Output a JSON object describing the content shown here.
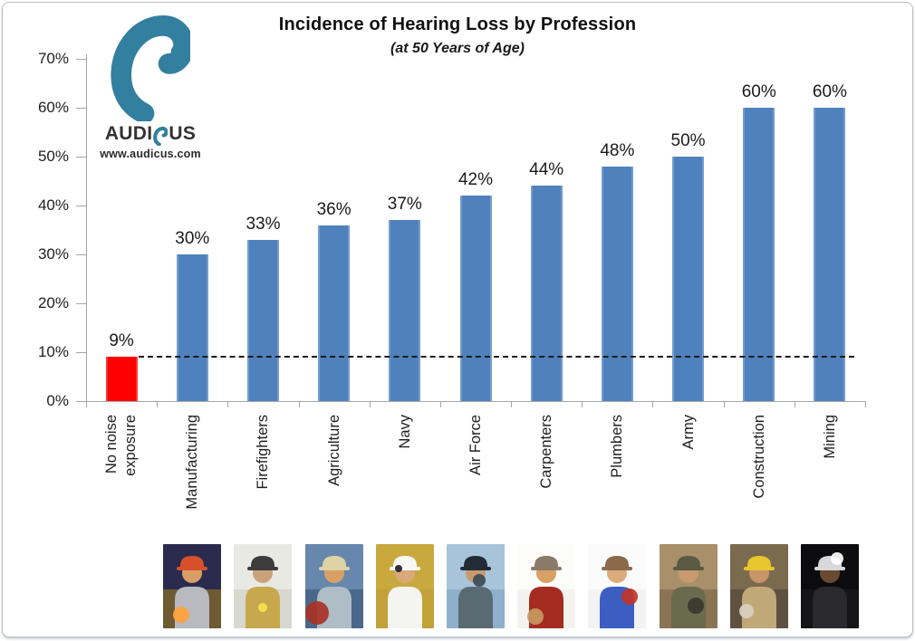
{
  "header": {
    "title": "Incidence of Hearing Loss by Profession",
    "subtitle": "(at 50 Years of Age)"
  },
  "logo": {
    "brand_prefix": "AUDI",
    "brand_suffix": "US",
    "website": "www.audicus.com",
    "teal": "#337F9F",
    "text_color": "#333333"
  },
  "chart_data": {
    "type": "bar",
    "title": "Incidence of Hearing Loss by Profession",
    "subtitle": "(at 50 Years of Age)",
    "categories": [
      "No noise exposure",
      "Manufacturing",
      "Firefighters",
      "Agriculture",
      "Navy",
      "Air Force",
      "Carpenters",
      "Plumbers",
      "Army",
      "Construction",
      "Mining"
    ],
    "display_categories": [
      "No noise\nexposure",
      "Manufacturing",
      "Firefighters",
      "Agriculture",
      "Navy",
      "Air Force",
      "Carpenters",
      "Plumbers",
      "Army",
      "Construction",
      "Mining"
    ],
    "values": [
      9,
      30,
      33,
      36,
      37,
      42,
      44,
      48,
      50,
      60,
      60
    ],
    "value_labels": [
      "9%",
      "30%",
      "33%",
      "36%",
      "37%",
      "42%",
      "44%",
      "48%",
      "50%",
      "60%",
      "60%"
    ],
    "bar_colors": [
      "#FF0000",
      "#4F81BD",
      "#4F81BD",
      "#4F81BD",
      "#4F81BD",
      "#4F81BD",
      "#4F81BD",
      "#4F81BD",
      "#4F81BD",
      "#4F81BD",
      "#4F81BD"
    ],
    "xlabel": "",
    "ylabel": "",
    "ylim": [
      0,
      70
    ],
    "yticks": [
      {
        "label": "0%",
        "value": 0
      },
      {
        "label": "10%",
        "value": 10
      },
      {
        "label": "20%",
        "value": 20
      },
      {
        "label": "30%",
        "value": 30
      },
      {
        "label": "40%",
        "value": 40
      },
      {
        "label": "50%",
        "value": 50
      },
      {
        "label": "60%",
        "value": 60
      },
      {
        "label": "70%",
        "value": 70
      }
    ],
    "grid": false,
    "legend": false,
    "reference_line": {
      "value": 9,
      "style": "dashed",
      "color": "#1C1C1C"
    }
  },
  "photos": [
    {
      "name": "welder-manufacturing",
      "label": "Manufacturing",
      "bg1": "#2b2b4e",
      "bg2": "#6e5a33",
      "skin": "#d9a066",
      "torso": "#b9b9c0",
      "hat": "#d8502a",
      "accent": "#ffa23c",
      "accent_x": 20,
      "accent_y": 78,
      "accent_r": 9
    },
    {
      "name": "firefighter",
      "label": "Firefighters",
      "bg1": "#e9e9e4",
      "bg2": "#d8d8d0",
      "skin": "#caa27a",
      "torso": "#c7a84e",
      "hat": "#3c3c3c",
      "accent": "#f5e34a",
      "accent_x": 32,
      "accent_y": 70,
      "accent_r": 5
    },
    {
      "name": "farmer-tractor",
      "label": "Agriculture",
      "bg1": "#6787ad",
      "bg2": "#49688c",
      "skin": "#d9a066",
      "torso": "#aebdc6",
      "hat": "#ddd3a4",
      "accent": "#a83226",
      "accent_x": 13,
      "accent_y": 76,
      "accent_r": 13
    },
    {
      "name": "navy-officer",
      "label": "Navy",
      "bg1": "#c9a93e",
      "bg2": "#c2a238",
      "skin": "#d9a978",
      "torso": "#f4f4f0",
      "hat": "#f8f8f5",
      "accent": "#1e1e28",
      "accent_x": 25,
      "accent_y": 27,
      "accent_r": 4
    },
    {
      "name": "fighter-pilot",
      "label": "Air Force",
      "bg1": "#a8c4da",
      "bg2": "#8fb0cc",
      "skin": "#c89a70",
      "torso": "#5a6a72",
      "hat": "#222c36",
      "accent": "#3a4a55",
      "accent_x": 36,
      "accent_y": 40,
      "accent_r": 7
    },
    {
      "name": "carpenter",
      "label": "Carpenters",
      "bg1": "#fcfcfa",
      "bg2": "#f4f2ee",
      "skin": "#d9a066",
      "torso": "#a42c20",
      "hat": "#8a7a6a",
      "accent": "#c79a62",
      "accent_x": 20,
      "accent_y": 80,
      "accent_r": 9
    },
    {
      "name": "plumber",
      "label": "Plumbers",
      "bg1": "#fbfbfb",
      "bg2": "#f3f3f3",
      "skin": "#dcab7c",
      "torso": "#3c5ec2",
      "hat": "#8a6a4a",
      "accent": "#c23428",
      "accent_x": 46,
      "accent_y": 58,
      "accent_r": 9
    },
    {
      "name": "soldier",
      "label": "Army",
      "bg1": "#a8906a",
      "bg2": "#8a7454",
      "skin": "#c89a70",
      "torso": "#6a6a4e",
      "hat": "#5a5a42",
      "accent": "#38382e",
      "accent_x": 40,
      "accent_y": 68,
      "accent_r": 9
    },
    {
      "name": "construction-worker",
      "label": "Construction",
      "bg1": "#7a6a4e",
      "bg2": "#5f5140",
      "skin": "#c89468",
      "torso": "#c0a878",
      "hat": "#e8c62e",
      "accent": "#d8d0c0",
      "accent_x": 18,
      "accent_y": 74,
      "accent_r": 8
    },
    {
      "name": "miner",
      "label": "Mining",
      "bg1": "#0c0c0e",
      "bg2": "#151517",
      "skin": "#6a4a32",
      "torso": "#2a2a2e",
      "hat": "#d8d8da",
      "accent": "#ffffff",
      "accent_x": 40,
      "accent_y": 16,
      "accent_r": 7
    }
  ]
}
